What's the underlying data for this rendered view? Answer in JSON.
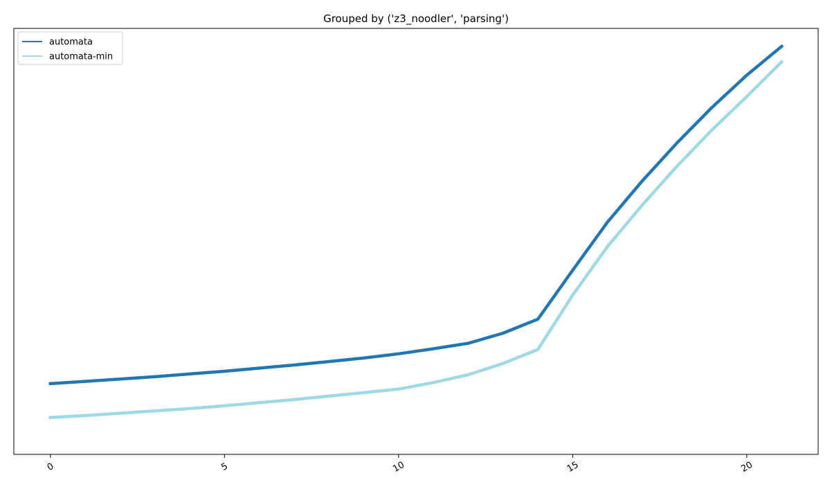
{
  "chart_data": {
    "type": "line",
    "title": "Grouped by ('z3_noodler', 'parsing')",
    "xlabel": "",
    "ylabel": "",
    "xlim": [
      -1.05,
      22.05
    ],
    "ylim": [
      0,
      100
    ],
    "xticks": [
      0,
      5,
      10,
      15,
      20
    ],
    "yticks_visible": false,
    "grid": false,
    "legend": "top-left",
    "x": [
      0,
      1,
      2,
      3,
      4,
      5,
      6,
      7,
      8,
      9,
      10,
      11,
      12,
      13,
      14,
      15,
      16,
      17,
      18,
      19,
      20,
      21
    ],
    "series": [
      {
        "name": "automata",
        "color": "#1f77b4",
        "values": [
          13.2,
          13.8,
          14.4,
          15.0,
          15.7,
          16.4,
          17.2,
          18.0,
          18.9,
          19.8,
          20.9,
          22.2,
          23.6,
          26.2,
          29.8,
          42.4,
          54.8,
          65.4,
          75.2,
          84.3,
          92.6,
          100.0
        ]
      },
      {
        "name": "automata-min",
        "color": "#9edae5",
        "values": [
          4.5,
          5.0,
          5.6,
          6.2,
          6.8,
          7.5,
          8.3,
          9.1,
          10.0,
          10.9,
          11.8,
          13.5,
          15.5,
          18.4,
          22.0,
          36.0,
          48.5,
          59.2,
          69.2,
          78.5,
          87.1,
          96.0
        ]
      }
    ]
  }
}
